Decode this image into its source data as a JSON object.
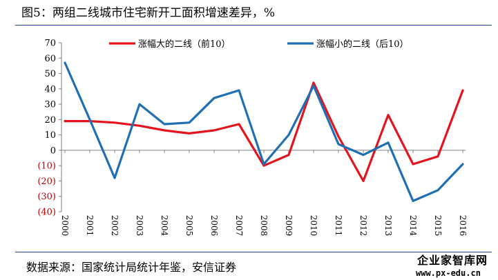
{
  "title": "图5：两组二线城市住宅新开工面积增速差异，%",
  "source": "数据来源：国家统计局统计年鉴，安信证券",
  "watermark": {
    "line1": "企业家智库网",
    "line2": "www.px-edu.cn"
  },
  "colors": {
    "series_red": "#e5141c",
    "series_blue": "#1f6fb4",
    "negative_tick": "#c00000",
    "rule": "#1f3f8f"
  },
  "chart_data": {
    "type": "line",
    "title": "图5：两组二线城市住宅新开工面积增速差异，%",
    "xlabel": "",
    "ylabel": "",
    "ylim": [
      -40,
      70
    ],
    "yticks": [
      70,
      60,
      50,
      40,
      30,
      20,
      10,
      0,
      -10,
      -20,
      -30,
      -40
    ],
    "ytick_labels": [
      "70",
      "60",
      "50",
      "40",
      "30",
      "20",
      "10",
      "0",
      "(10)",
      "(20)",
      "(30)",
      "(40)"
    ],
    "x": [
      "2000",
      "2001",
      "2002",
      "2003",
      "2004",
      "2005",
      "2006",
      "2007",
      "2008",
      "2009",
      "2010",
      "2011",
      "2012",
      "2013",
      "2014",
      "2015",
      "2016"
    ],
    "grid": false,
    "legend": "top",
    "series": [
      {
        "name": "涨幅大的二线（前10）",
        "color": "#e5141c",
        "values": [
          19,
          19,
          18,
          16,
          13,
          11,
          13,
          17,
          -10,
          -3,
          44,
          9,
          -20,
          23,
          -9,
          -4,
          39
        ]
      },
      {
        "name": "涨幅小的二线（后10）",
        "color": "#1f6fb4",
        "values": [
          57,
          20,
          -18,
          30,
          17,
          18,
          34,
          39,
          -9,
          10,
          42,
          4,
          -3,
          5,
          -33,
          -26,
          -9
        ]
      }
    ]
  }
}
